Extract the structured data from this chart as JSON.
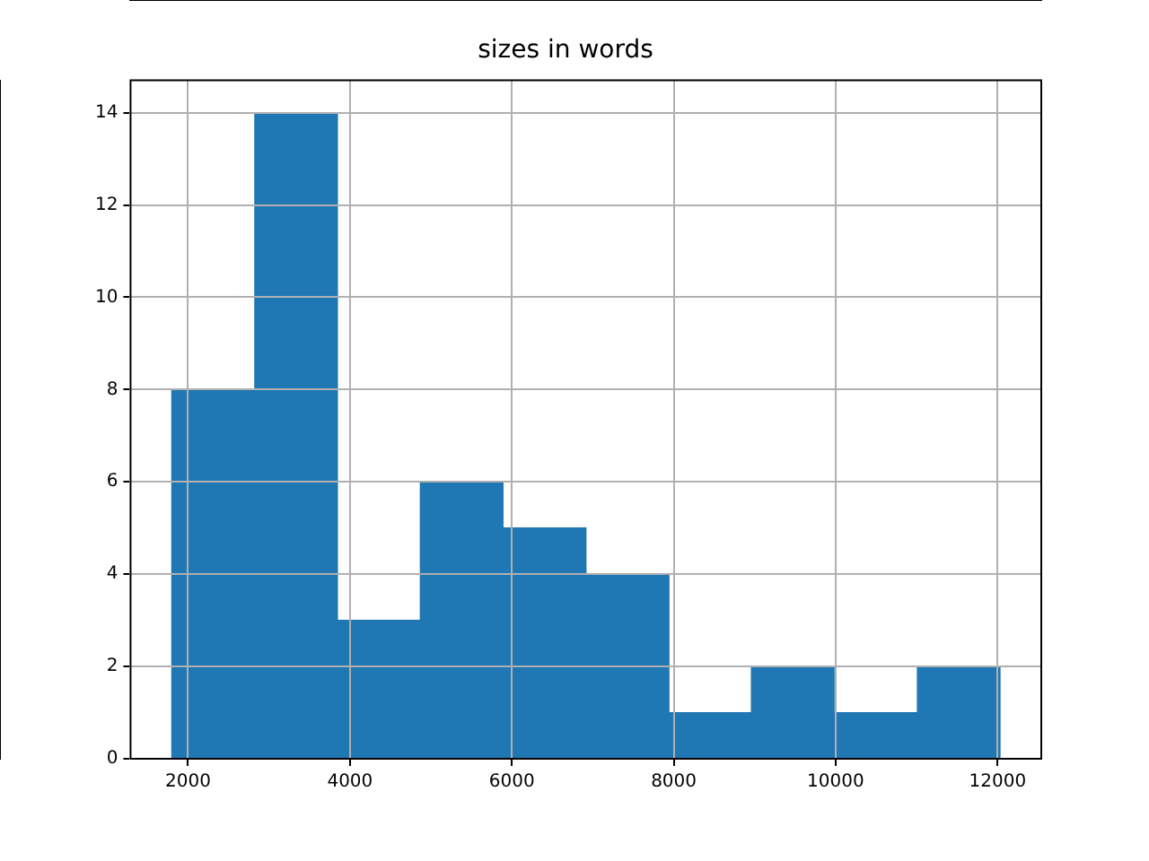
{
  "chart_data": {
    "type": "histogram",
    "title": "sizes in words",
    "bins": [
      1800,
      2820,
      3850,
      4870,
      5890,
      6920,
      7940,
      8960,
      9980,
      11010,
      12030
    ],
    "values": [
      8,
      14,
      3,
      6,
      5,
      4,
      1,
      2,
      1,
      2
    ],
    "color": "#1f77b4",
    "xlim": [
      1290,
      12540
    ],
    "xticks": [
      2000,
      4000,
      6000,
      8000,
      10000,
      12000
    ],
    "ylim": [
      0,
      14.7
    ],
    "yticks": [
      0,
      2,
      4,
      6,
      8,
      10,
      12,
      14
    ],
    "grid": true
  }
}
